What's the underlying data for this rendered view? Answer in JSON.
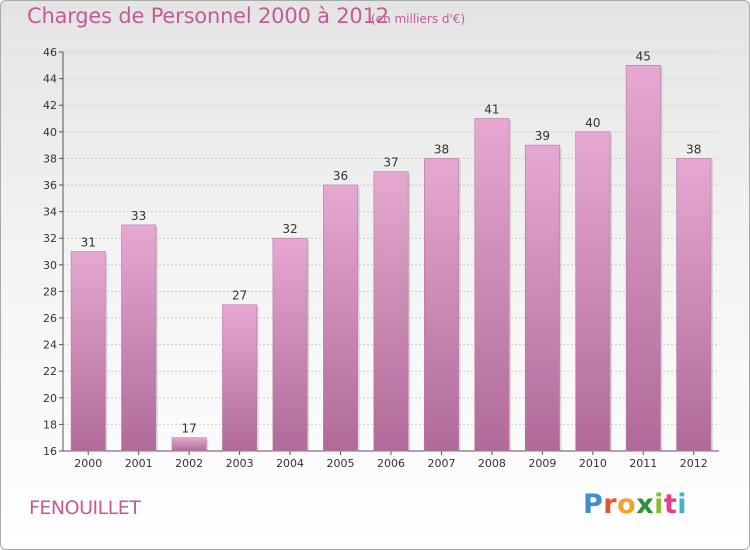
{
  "header": {
    "title": "Charges de Personnel 2000 à 2012",
    "subtitle": "(en milliers d'€)"
  },
  "footer": {
    "commune": "FENOUILLET",
    "logo_letters": [
      "P",
      "r",
      "o",
      "x",
      "i",
      "t",
      "i"
    ]
  },
  "colors": {
    "bar_top": "#e6a8d2",
    "bar_bottom": "#b06a99",
    "title": "#c35b98",
    "gridline": "#cccccc"
  },
  "chart_data": {
    "type": "bar",
    "title": "Charges de Personnel 2000 à 2012",
    "subtitle": "(en milliers d'€)",
    "categories": [
      "2000",
      "2001",
      "2002",
      "2003",
      "2004",
      "2005",
      "2006",
      "2007",
      "2008",
      "2009",
      "2010",
      "2011",
      "2012"
    ],
    "values": [
      31,
      33,
      17,
      27,
      32,
      36,
      37,
      38,
      41,
      39,
      40,
      45,
      38
    ],
    "ylim": [
      16,
      46
    ],
    "yticks": [
      16,
      18,
      20,
      22,
      24,
      26,
      28,
      30,
      32,
      34,
      36,
      38,
      40,
      42,
      44,
      46
    ],
    "grid": true,
    "data_labels": true
  }
}
